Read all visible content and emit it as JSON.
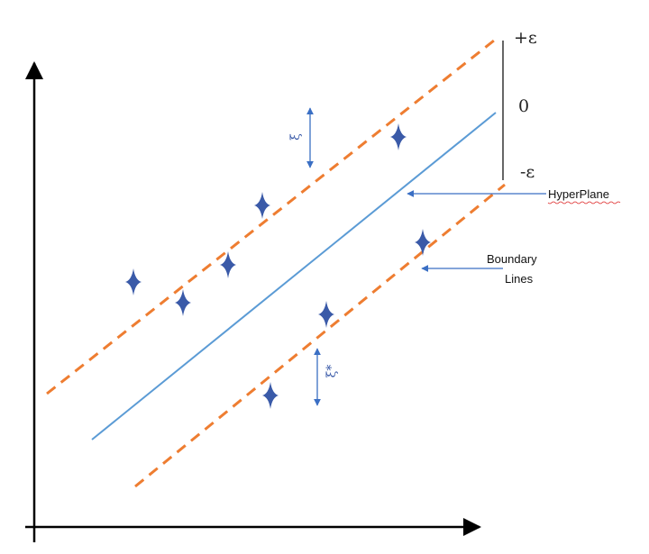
{
  "scale_labels": {
    "plus_epsilon": "+ε",
    "zero": "0",
    "minus_epsilon": "-ε"
  },
  "annotations": {
    "hyperplane": "HyperPlane",
    "boundary_lines": [
      "Boundary",
      "Lines"
    ]
  },
  "slack_labels": {
    "upper": "ξ",
    "lower": "ξ*"
  }
}
